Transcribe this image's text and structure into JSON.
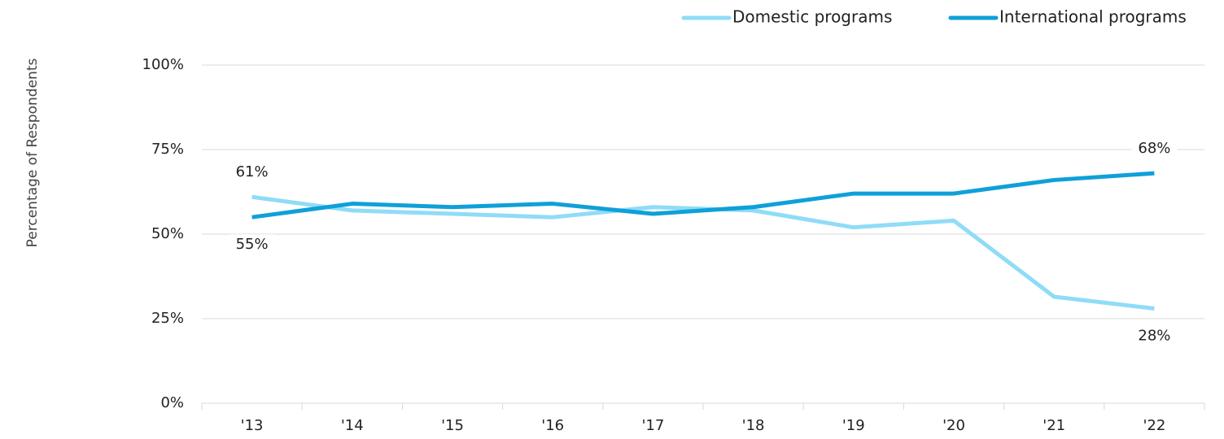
{
  "chart_data": {
    "type": "line",
    "y_axis_label": "Percentage of Respondents",
    "categories": [
      "'13",
      "'14",
      "'15",
      "'16",
      "'17",
      "'18",
      "'19",
      "'20",
      "'21",
      "'22"
    ],
    "series": [
      {
        "name": "Domestic programs",
        "color": "#8fdcf7",
        "values": [
          61,
          57,
          56,
          55,
          58,
          57,
          52,
          54,
          31.5,
          28
        ],
        "value_labels": [
          "61%",
          null,
          null,
          null,
          null,
          null,
          null,
          null,
          null,
          "28%"
        ]
      },
      {
        "name": "International programs",
        "color": "#0fa0d8",
        "values": [
          55,
          59,
          58,
          59,
          56,
          58,
          62,
          62,
          66,
          68
        ],
        "value_labels": [
          "55%",
          null,
          null,
          null,
          null,
          null,
          null,
          null,
          null,
          "68%"
        ]
      }
    ],
    "ylim": [
      0,
      100
    ],
    "yticks": [
      {
        "value": 0,
        "label": "0%"
      },
      {
        "value": 25,
        "label": "25%"
      },
      {
        "value": 50,
        "label": "50%"
      },
      {
        "value": 75,
        "label": "75%"
      },
      {
        "value": 100,
        "label": "100%"
      }
    ],
    "grid": true,
    "legend": "top-right"
  }
}
